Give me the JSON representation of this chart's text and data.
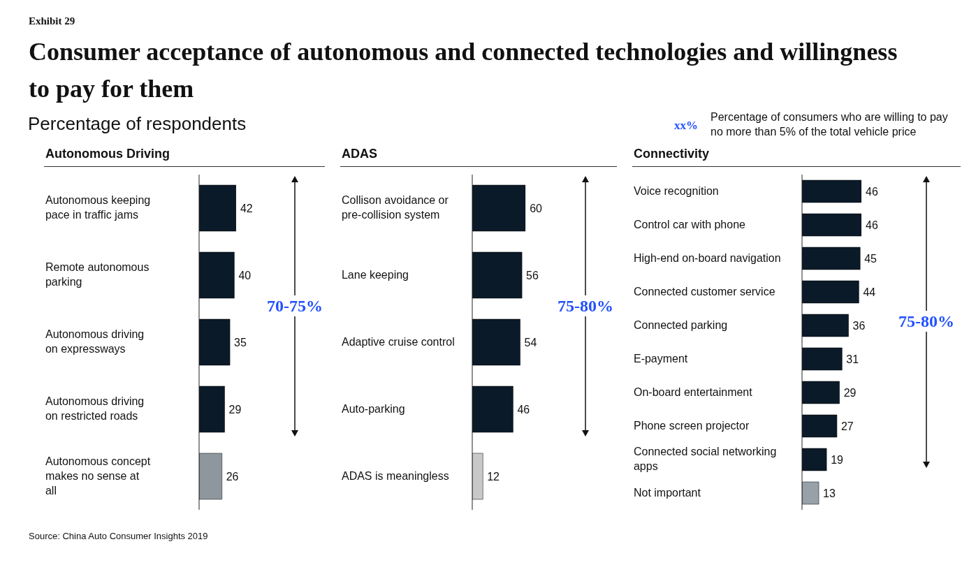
{
  "chart_data": [
    {
      "type": "bar",
      "orientation": "horizontal",
      "title": "Autonomous Driving",
      "categories": [
        "Autonomous keeping pace in traffic jams",
        "Remote autonomous parking",
        "Autonomous driving on expressways",
        "Autonomous driving on restricted roads",
        "Autonomous concept makes no sense at all"
      ],
      "values": [
        42,
        40,
        35,
        29,
        26
      ],
      "colors": [
        "#0b1a28",
        "#0b1a28",
        "#0b1a28",
        "#0b1a28",
        "#8e979e"
      ],
      "data_labels": true,
      "annotations": [
        "Exhibit 29",
        "Consumer acceptance of autonomous and connected technologies and willingness to pay for them",
        "Percentage of respondents",
        "xx%",
        "Percentage of consumers who are willing to pay no more than 5% of the total vehicle price",
        "Source: China Auto Consumer Insights 2019",
        "70-75%"
      ]
    },
    {
      "type": "bar",
      "orientation": "horizontal",
      "title": "ADAS",
      "categories": [
        "Collison avoidance or pre-collision system",
        "Lane keeping",
        "Adaptive cruise control",
        "Auto-parking",
        "ADAS is meaningless"
      ],
      "values": [
        60,
        56,
        54,
        46,
        12
      ],
      "colors": [
        "#0b1a28",
        "#0b1a28",
        "#0b1a28",
        "#0b1a28",
        "#c9c9c9"
      ],
      "data_labels": true,
      "annotations": [
        "75-80%"
      ]
    },
    {
      "type": "bar",
      "orientation": "horizontal",
      "title": "Connectivity",
      "categories": [
        "Voice recognition",
        "Control car with phone",
        "High-end on-board navigation",
        "Connected customer service",
        "Connected parking",
        "E-payment",
        "On-board entertainment",
        "Phone screen projector",
        "Connected social networking apps",
        "Not important"
      ],
      "values": [
        46,
        46,
        45,
        44,
        36,
        31,
        29,
        27,
        19,
        13
      ],
      "colors": [
        "#0b1a28",
        "#0b1a28",
        "#0b1a28",
        "#0b1a28",
        "#0b1a28",
        "#0b1a28",
        "#0b1a28",
        "#0b1a28",
        "#0b1a28",
        "#98a1a8"
      ],
      "data_labels": true,
      "annotations": [
        "75-80%"
      ]
    }
  ]
}
